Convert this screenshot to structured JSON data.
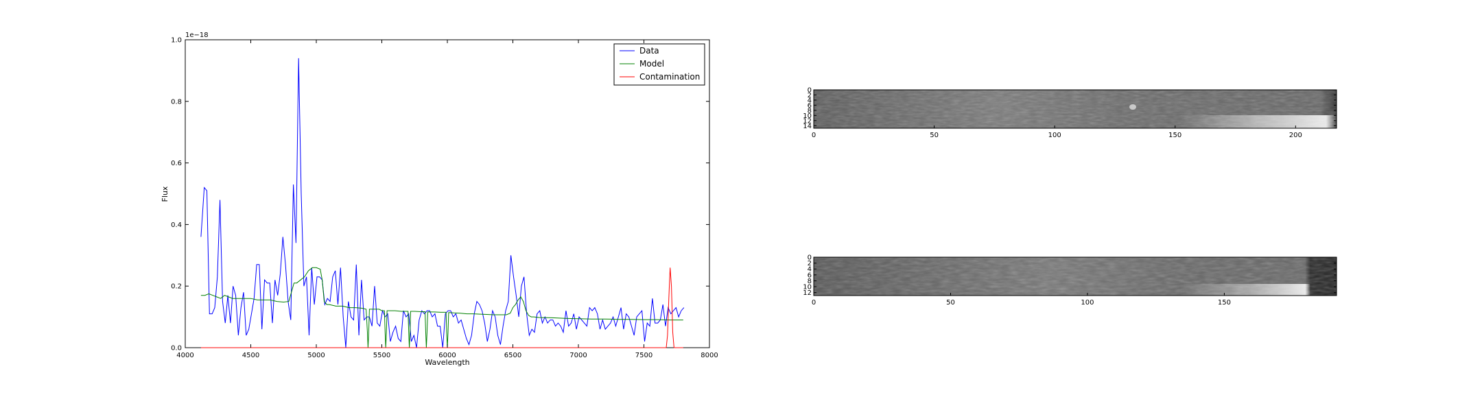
{
  "chart_data": [
    {
      "type": "line",
      "title": "",
      "xlabel": "Wavelength",
      "ylabel": "Flux",
      "offset_label": "1e−18",
      "xlim": [
        4000,
        8000
      ],
      "ylim": [
        0.0,
        1.0
      ],
      "xticks": [
        4000,
        4500,
        5000,
        5500,
        6000,
        6500,
        7000,
        7500,
        8000
      ],
      "xtick_labels": [
        "4000",
        "4500",
        "5000",
        "5500",
        "6000",
        "6500",
        "7000",
        "7500",
        "8000"
      ],
      "yticks": [
        0.0,
        0.2,
        0.4,
        0.6,
        0.8,
        1.0
      ],
      "ytick_labels": [
        "0.0",
        "0.2",
        "0.4",
        "0.6",
        "0.8",
        "1.0"
      ],
      "legend_position": "top-right",
      "grid": false,
      "series": [
        {
          "name": "Data",
          "color": "#0000ff",
          "x": [
            4120,
            4145,
            4165,
            4185,
            4205,
            4225,
            4245,
            4265,
            4285,
            4305,
            4325,
            4345,
            4365,
            4385,
            4405,
            4425,
            4445,
            4465,
            4485,
            4505,
            4525,
            4545,
            4565,
            4585,
            4605,
            4625,
            4645,
            4665,
            4685,
            4705,
            4725,
            4745,
            4765,
            4785,
            4805,
            4825,
            4845,
            4865,
            4885,
            4905,
            4925,
            4945,
            4965,
            4985,
            5005,
            5025,
            5045,
            5065,
            5085,
            5105,
            5125,
            5145,
            5165,
            5185,
            5205,
            5225,
            5245,
            5265,
            5285,
            5305,
            5325,
            5345,
            5365,
            5385,
            5405,
            5425,
            5445,
            5465,
            5485,
            5505,
            5525,
            5545,
            5565,
            5585,
            5605,
            5625,
            5645,
            5665,
            5685,
            5705,
            5725,
            5745,
            5765,
            5785,
            5805,
            5825,
            5845,
            5865,
            5885,
            5905,
            5925,
            5945,
            5965,
            5985,
            6005,
            6025,
            6045,
            6065,
            6085,
            6105,
            6125,
            6145,
            6165,
            6185,
            6205,
            6225,
            6245,
            6265,
            6285,
            6305,
            6325,
            6345,
            6365,
            6385,
            6405,
            6425,
            6445,
            6465,
            6485,
            6505,
            6525,
            6545,
            6565,
            6585,
            6605,
            6625,
            6645,
            6665,
            6685,
            6705,
            6725,
            6745,
            6765,
            6785,
            6805,
            6825,
            6845,
            6865,
            6885,
            6905,
            6925,
            6945,
            6965,
            6985,
            7005,
            7025,
            7045,
            7065,
            7085,
            7105,
            7125,
            7145,
            7165,
            7185,
            7205,
            7225,
            7245,
            7265,
            7285,
            7305,
            7325,
            7345,
            7365,
            7385,
            7405,
            7425,
            7445,
            7465,
            7485,
            7505,
            7525,
            7545,
            7565,
            7585,
            7605,
            7625,
            7645,
            7665,
            7685,
            7705,
            7725,
            7745,
            7765,
            7785,
            7805
          ],
          "y": [
            0.36,
            0.52,
            0.51,
            0.11,
            0.11,
            0.13,
            0.23,
            0.48,
            0.15,
            0.08,
            0.17,
            0.08,
            0.2,
            0.17,
            0.04,
            0.13,
            0.18,
            0.04,
            0.06,
            0.11,
            0.16,
            0.27,
            0.27,
            0.06,
            0.22,
            0.21,
            0.21,
            0.08,
            0.22,
            0.17,
            0.24,
            0.36,
            0.27,
            0.15,
            0.09,
            0.53,
            0.34,
            0.94,
            0.5,
            0.2,
            0.23,
            0.04,
            0.26,
            0.14,
            0.23,
            0.23,
            0.22,
            0.14,
            0.16,
            0.15,
            0.23,
            0.25,
            0.14,
            0.26,
            0.1,
            0.0,
            0.15,
            0.1,
            0.09,
            0.27,
            0.04,
            0.22,
            0.09,
            0.1,
            0.1,
            0.07,
            0.2,
            0.08,
            0.07,
            0.12,
            0.1,
            0.11,
            0.02,
            0.05,
            0.07,
            0.03,
            0.02,
            0.12,
            0.1,
            0.11,
            0.02,
            0.04,
            0.0,
            0.09,
            0.12,
            0.11,
            0.12,
            0.12,
            0.1,
            0.11,
            0.07,
            0.07,
            0.0,
            0.11,
            0.12,
            0.12,
            0.1,
            0.11,
            0.08,
            0.09,
            0.06,
            0.03,
            0.01,
            0.04,
            0.11,
            0.15,
            0.14,
            0.12,
            0.08,
            0.02,
            0.06,
            0.12,
            0.1,
            0.04,
            0.01,
            0.07,
            0.12,
            0.15,
            0.3,
            0.23,
            0.17,
            0.1,
            0.2,
            0.23,
            0.11,
            0.04,
            0.06,
            0.05,
            0.11,
            0.12,
            0.08,
            0.1,
            0.08,
            0.09,
            0.09,
            0.07,
            0.08,
            0.07,
            0.05,
            0.12,
            0.07,
            0.08,
            0.11,
            0.06,
            0.1,
            0.09,
            0.08,
            0.07,
            0.13,
            0.12,
            0.13,
            0.11,
            0.06,
            0.09,
            0.06,
            0.07,
            0.08,
            0.1,
            0.07,
            0.1,
            0.13,
            0.06,
            0.11,
            0.1,
            0.07,
            0.04,
            0.1,
            0.11,
            0.12,
            0.02,
            0.08,
            0.07,
            0.16,
            0.08,
            0.08,
            0.09,
            0.14,
            0.07,
            0.13,
            0.11,
            0.12,
            0.13,
            0.1,
            0.12,
            0.13
          ]
        },
        {
          "name": "Model",
          "color": "#008000",
          "x": [
            4120,
            4150,
            4180,
            4210,
            4240,
            4270,
            4300,
            4330,
            4360,
            4400,
            4450,
            4500,
            4550,
            4600,
            4650,
            4700,
            4750,
            4790,
            4810,
            4830,
            4850,
            4880,
            4910,
            4940,
            4970,
            5000,
            5030,
            5045,
            5060,
            5080,
            5100,
            5150,
            5200,
            5250,
            5300,
            5350,
            5380,
            5390,
            5395,
            5400,
            5405,
            5410,
            5450,
            5480,
            5500,
            5520,
            5525,
            5530,
            5535,
            5540,
            5550,
            5600,
            5650,
            5700,
            5705,
            5710,
            5715,
            5720,
            5750,
            5800,
            5830,
            5835,
            5840,
            5845,
            5850,
            5900,
            5950,
            5990,
            5995,
            6000,
            6005,
            6010,
            6050,
            6100,
            6150,
            6200,
            6250,
            6300,
            6350,
            6400,
            6450,
            6480,
            6500,
            6520,
            6540,
            6560,
            6580,
            6600,
            6620,
            6640,
            6660,
            6700,
            6800,
            6900,
            7000,
            7100,
            7200,
            7300,
            7400,
            7500,
            7600,
            7700,
            7800
          ],
          "y": [
            0.17,
            0.17,
            0.175,
            0.17,
            0.165,
            0.16,
            0.17,
            0.165,
            0.16,
            0.16,
            0.16,
            0.16,
            0.155,
            0.155,
            0.155,
            0.15,
            0.148,
            0.15,
            0.18,
            0.21,
            0.21,
            0.22,
            0.23,
            0.25,
            0.26,
            0.26,
            0.255,
            0.22,
            0.15,
            0.14,
            0.14,
            0.135,
            0.135,
            0.13,
            0.13,
            0.128,
            0.125,
            0.05,
            0.0,
            0.05,
            0.125,
            0.125,
            0.125,
            0.125,
            0.12,
            0.12,
            0.05,
            0.0,
            0.05,
            0.12,
            0.12,
            0.12,
            0.118,
            0.118,
            0.05,
            0.0,
            0.05,
            0.118,
            0.118,
            0.117,
            0.117,
            0.05,
            0.0,
            0.05,
            0.116,
            0.116,
            0.115,
            0.115,
            0.05,
            0.0,
            0.05,
            0.114,
            0.113,
            0.112,
            0.11,
            0.11,
            0.109,
            0.108,
            0.107,
            0.107,
            0.107,
            0.112,
            0.13,
            0.14,
            0.155,
            0.165,
            0.15,
            0.12,
            0.105,
            0.1,
            0.1,
            0.098,
            0.097,
            0.095,
            0.094,
            0.093,
            0.093,
            0.092,
            0.092,
            0.091,
            0.091,
            0.09,
            0.09
          ]
        },
        {
          "name": "Contamination",
          "color": "#ff0000",
          "x": [
            4120,
            7650,
            7670,
            7680,
            7690,
            7700,
            7710,
            7720,
            7730,
            7740,
            7800
          ],
          "y": [
            0.0,
            0.0,
            0.0,
            0.04,
            0.16,
            0.26,
            0.2,
            0.05,
            0.0,
            0.0,
            0.0
          ]
        }
      ]
    },
    {
      "type": "heatmap",
      "title": "",
      "colormap": "gray",
      "xticks": [
        0,
        50,
        100,
        150,
        200
      ],
      "xtick_labels": [
        "0",
        "50",
        "100",
        "150",
        "200"
      ],
      "yticks": [
        0,
        2,
        4,
        6,
        8,
        10,
        12,
        14
      ],
      "ytick_labels": [
        "0",
        "2",
        "4",
        "6",
        "8",
        "10",
        "12",
        "14"
      ],
      "xlim": [
        0,
        217
      ],
      "ylim": [
        15,
        0
      ]
    },
    {
      "type": "heatmap",
      "title": "",
      "colormap": "gray",
      "xticks": [
        0,
        50,
        100,
        150
      ],
      "xtick_labels": [
        "0",
        "50",
        "100",
        "150"
      ],
      "yticks": [
        0,
        2,
        4,
        6,
        8,
        10,
        12
      ],
      "ytick_labels": [
        "0",
        "2",
        "4",
        "6",
        "8",
        "10",
        "12"
      ],
      "xlim": [
        0,
        191
      ],
      "ylim": [
        13,
        0
      ]
    }
  ]
}
